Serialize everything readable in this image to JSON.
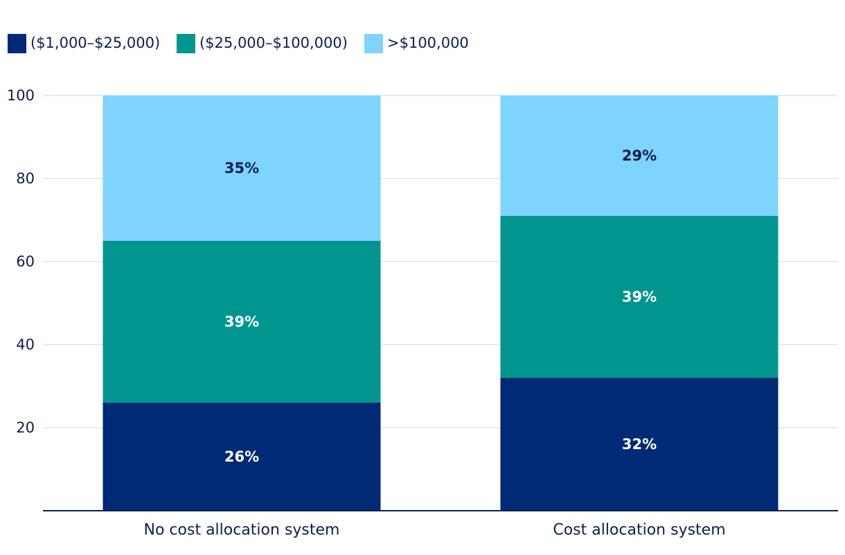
{
  "chart_data": {
    "type": "bar",
    "stacked": true,
    "categories": [
      "No cost allocation system",
      "Cost allocation system"
    ],
    "series": [
      {
        "name": "($1,000–$25,000)",
        "values": [
          26,
          32
        ],
        "labels": [
          "26%",
          "32%"
        ],
        "color": "#002a76",
        "label_color": "#ffffff"
      },
      {
        "name": "($25,000–$100,000)",
        "values": [
          39,
          39
        ],
        "labels": [
          "39%",
          "39%"
        ],
        "color": "#00968f",
        "label_color": "#ffffff"
      },
      {
        "name": ">$100,000",
        "values": [
          35,
          29
        ],
        "labels": [
          "35%",
          "29%"
        ],
        "color": "#7fd3ff",
        "label_color": "#0b1f4d"
      }
    ],
    "ylim": [
      0,
      100
    ],
    "yticks": [
      20,
      40,
      60,
      80,
      100
    ],
    "ytick_labels": [
      "20",
      "40",
      "60",
      "80",
      "100"
    ],
    "grid": true,
    "legend_position": "top-left",
    "title": "",
    "xlabel": "",
    "ylabel": ""
  }
}
